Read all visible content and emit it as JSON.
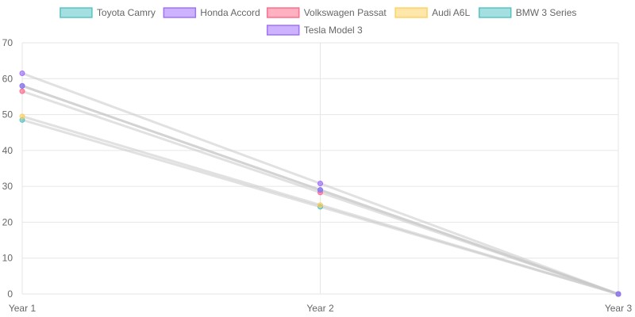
{
  "chart_data": {
    "type": "line",
    "title": "",
    "xlabel": "",
    "ylabel": "",
    "categories": [
      "Year 1",
      "Year 2",
      "Year 3"
    ],
    "ylim": [
      0,
      70
    ],
    "yticks": [
      0,
      10,
      20,
      30,
      40,
      50,
      60,
      70
    ],
    "grid": true,
    "legend_position": "top",
    "series": [
      {
        "name": "Toyota Camry",
        "values": [
          48.5,
          24.3,
          0
        ],
        "color": "#4bc0c0"
      },
      {
        "name": "Honda Accord",
        "values": [
          61.5,
          30.8,
          0
        ],
        "color": "#9966ff"
      },
      {
        "name": "Volkswagen Passat",
        "values": [
          56.5,
          28.3,
          0
        ],
        "color": "#ff6384"
      },
      {
        "name": "Audi A6L",
        "values": [
          49.5,
          24.8,
          0
        ],
        "color": "#ffcd56"
      },
      {
        "name": "BMW 3 Series",
        "values": [
          58.0,
          29.0,
          0
        ],
        "color": "#4bc0c0"
      },
      {
        "name": "Tesla Model 3",
        "values": [
          58.0,
          29.0,
          0
        ],
        "color": "#9966ff"
      }
    ],
    "line_color": "#c8c8c8"
  }
}
